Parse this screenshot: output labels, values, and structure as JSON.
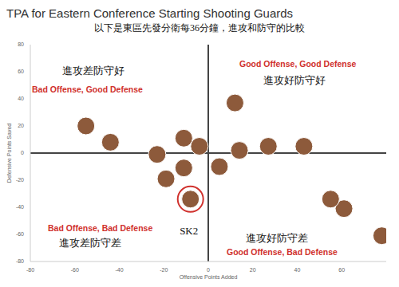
{
  "chart_data": {
    "type": "scatter",
    "title": "TPA for Eastern Conference Starting Shooting Guards",
    "subtitle": "以下是東區先發分衛每36分鐘，進攻和防守的比較",
    "x_label": "Offensive Points Added",
    "y_label": "Defensive Points Saved",
    "xlim": [
      -80,
      80
    ],
    "xticks": [
      -80,
      -60,
      -40,
      -20,
      0,
      20,
      40,
      60
    ],
    "ylim": [
      -80,
      80
    ],
    "yticks": [
      -80,
      -60,
      -40,
      -20,
      0,
      20,
      40,
      60,
      80
    ],
    "grid": false,
    "marker": "circle",
    "color": "#8d5a3b",
    "reference_lines": {
      "x": 0,
      "y": 0
    },
    "series": [
      {
        "x": [
          -55,
          -44,
          -23,
          -11,
          -4,
          -19,
          -11,
          -8,
          5,
          12,
          14,
          27,
          43,
          61,
          55,
          78
        ],
        "y": [
          20,
          8,
          -1,
          11,
          5,
          -19,
          -11,
          -34,
          -10,
          37,
          2,
          5,
          5,
          -41,
          -34,
          -61
        ]
      }
    ],
    "highlight": {
      "x": -8,
      "y": -34,
      "label": "SK2",
      "color": "#d0312d"
    },
    "quadrants": {
      "top_left": {
        "zh": "進攻差防守好",
        "en": "Bad Offense, Good Defense"
      },
      "top_right": {
        "en": "Good Offense, Good Defense",
        "zh": "進攻好防守好"
      },
      "bottom_left": {
        "en": "Bad Offense, Bad Defense",
        "zh": "進攻差防守差"
      },
      "bottom_right": {
        "zh": "進攻好防守差",
        "en": "Good Offense, Bad Defense"
      },
      "en_color": "#d0312d",
      "zh_color": "#111111"
    }
  }
}
